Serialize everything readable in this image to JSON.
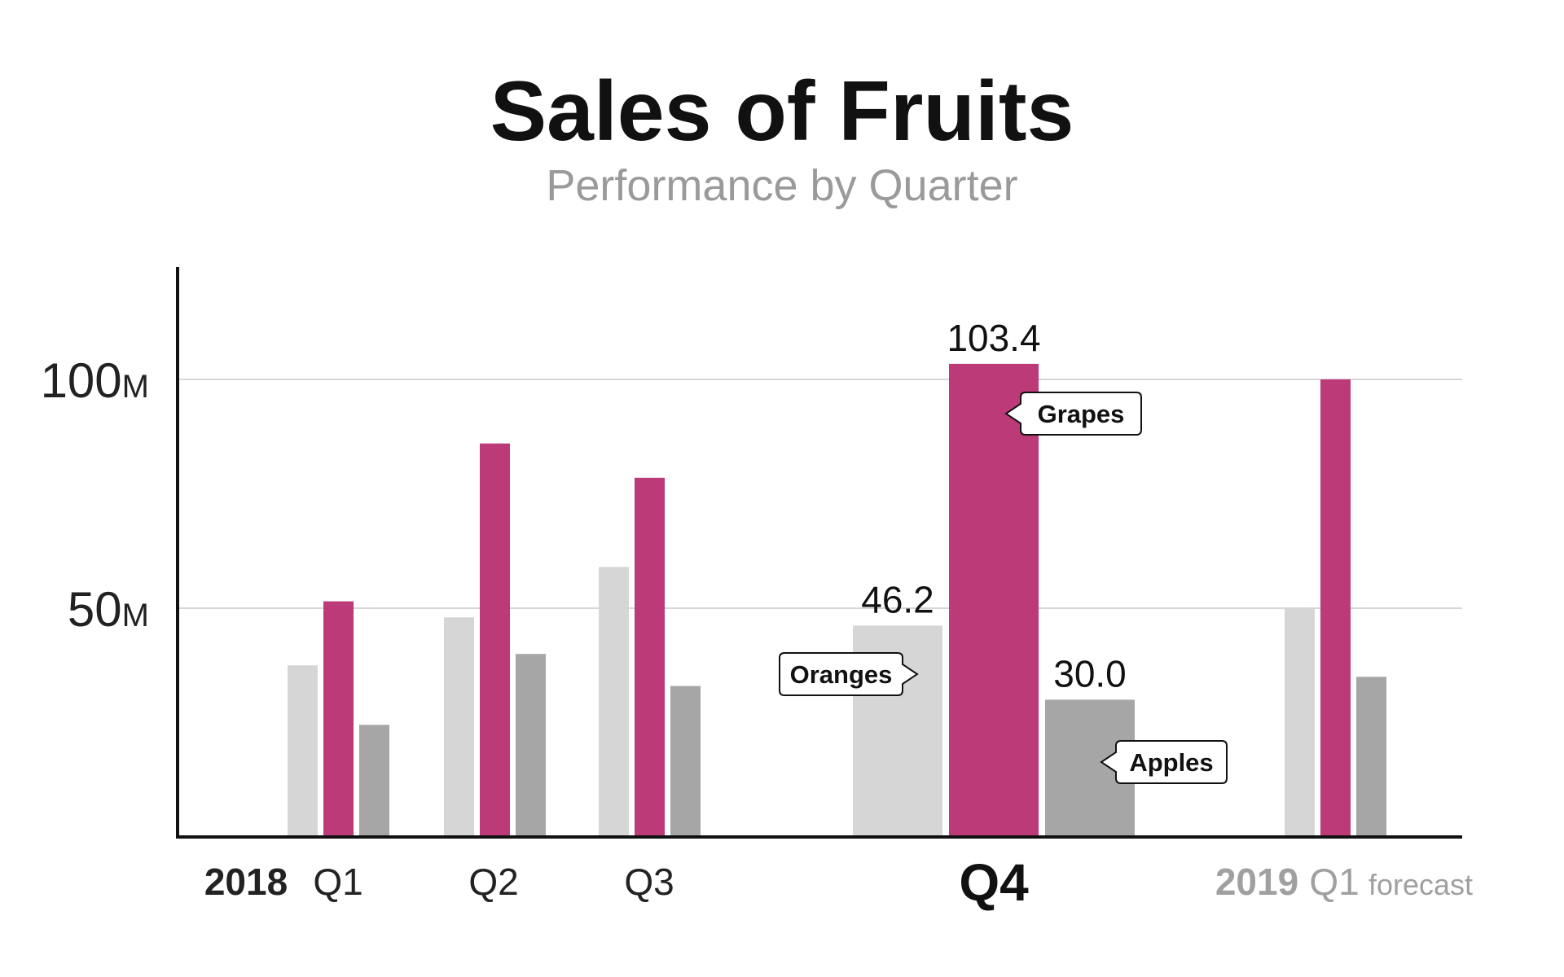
{
  "chart_data": {
    "type": "bar",
    "title": "Sales of Fruits",
    "subtitle": "Performance by Quarter",
    "y_ticks": [
      {
        "value": 100,
        "number": "100",
        "unit": "M"
      },
      {
        "value": 50,
        "number": "50",
        "unit": "M"
      }
    ],
    "ylim": [
      0,
      120
    ],
    "grid": "horizontal",
    "years": [
      {
        "label": "2018",
        "first_group": 0
      },
      {
        "label": "2019",
        "first_group": 4
      }
    ],
    "groups": [
      {
        "label": "Q1",
        "style": "normal"
      },
      {
        "label": "Q2",
        "style": "normal"
      },
      {
        "label": "Q3",
        "style": "normal"
      },
      {
        "label": "Q4",
        "style": "focus"
      },
      {
        "label": "Q1",
        "style": "future",
        "note": "forecast"
      }
    ],
    "series": [
      {
        "name": "Oranges",
        "color": "#d6d6d6",
        "values": [
          37.5,
          48,
          59,
          46.2,
          50
        ]
      },
      {
        "name": "Grapes",
        "color": "#bc3a78",
        "values": [
          51.5,
          86,
          78.5,
          103.4,
          100
        ]
      },
      {
        "name": "Apples",
        "color": "#a6a6a6",
        "values": [
          24.5,
          40,
          33,
          30.0,
          35
        ]
      }
    ],
    "value_labels": [
      "46.2",
      "103.4",
      "30.0"
    ],
    "focus_group": 3
  }
}
